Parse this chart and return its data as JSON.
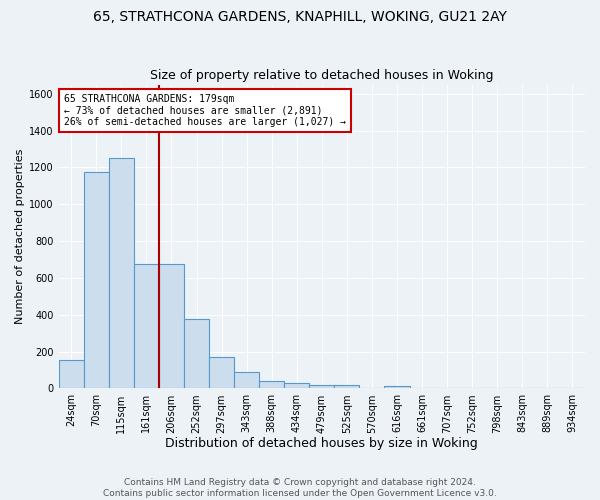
{
  "title1": "65, STRATHCONA GARDENS, KNAPHILL, WOKING, GU21 2AY",
  "title2": "Size of property relative to detached houses in Woking",
  "xlabel": "Distribution of detached houses by size in Woking",
  "ylabel": "Number of detached properties",
  "footer1": "Contains HM Land Registry data © Crown copyright and database right 2024.",
  "footer2": "Contains public sector information licensed under the Open Government Licence v3.0.",
  "bin_labels": [
    "24sqm",
    "70sqm",
    "115sqm",
    "161sqm",
    "206sqm",
    "252sqm",
    "297sqm",
    "343sqm",
    "388sqm",
    "434sqm",
    "479sqm",
    "525sqm",
    "570sqm",
    "616sqm",
    "661sqm",
    "707sqm",
    "752sqm",
    "798sqm",
    "843sqm",
    "889sqm",
    "934sqm"
  ],
  "bar_values": [
    155,
    1175,
    1250,
    675,
    675,
    375,
    170,
    90,
    40,
    30,
    20,
    20,
    0,
    15,
    0,
    0,
    0,
    0,
    0,
    0,
    0
  ],
  "bar_color": "#ccdded",
  "bar_edge_color": "#5599cc",
  "vline_color": "#aa0000",
  "annotation_line1": "65 STRATHCONA GARDENS: 179sqm",
  "annotation_line2": "← 73% of detached houses are smaller (2,891)",
  "annotation_line3": "26% of semi-detached houses are larger (1,027) →",
  "annotation_box_color": "white",
  "annotation_box_edge": "#cc0000",
  "ylim": [
    0,
    1650
  ],
  "yticks": [
    0,
    200,
    400,
    600,
    800,
    1000,
    1200,
    1400,
    1600
  ],
  "background_color": "#edf2f7",
  "grid_color": "white",
  "title1_fontsize": 10,
  "title2_fontsize": 9,
  "xlabel_fontsize": 9,
  "ylabel_fontsize": 8,
  "tick_fontsize": 7,
  "footer_fontsize": 6.5
}
